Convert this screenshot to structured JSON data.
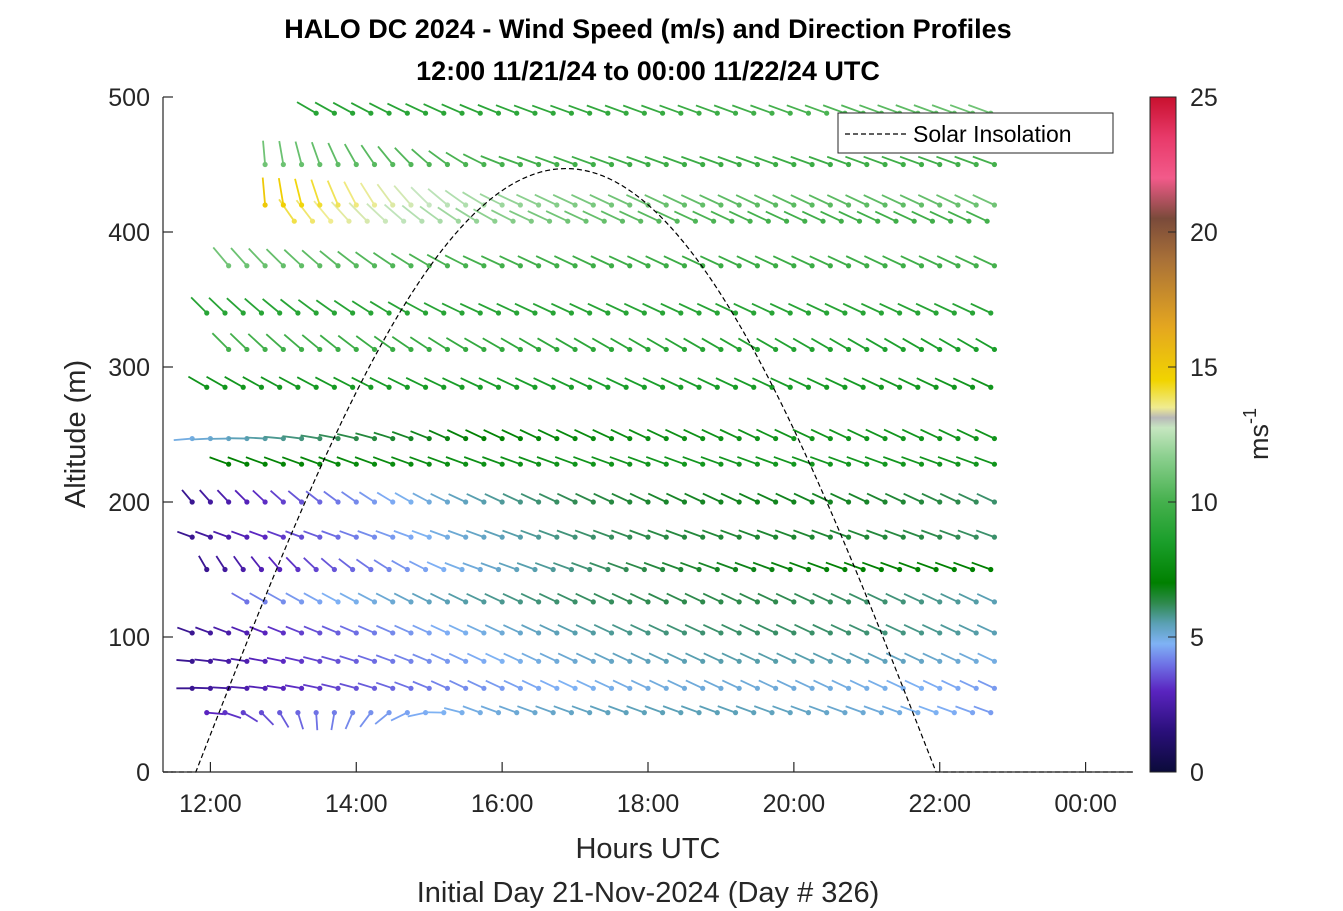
{
  "chart_data": {
    "type": "scatter",
    "title": [
      "HALO DC 2024 - Wind Speed (m/s) and Direction Profiles",
      "12:00 11/21/24 to 00:00 11/22/24  UTC"
    ],
    "xlabel": "Hours UTC",
    "sublabel": "Initial Day 21-Nov-2024 (Day # 326)",
    "ylabel": "Altitude (m)",
    "xlim": [
      11.35,
      24.65
    ],
    "ylim": [
      0,
      500
    ],
    "x_ticks": [
      12,
      14,
      16,
      18,
      20,
      22,
      24
    ],
    "x_tick_labels": [
      "12:00",
      "14:00",
      "16:00",
      "18:00",
      "20:00",
      "22:00",
      "00:00"
    ],
    "y_ticks": [
      0,
      100,
      200,
      300,
      400,
      500
    ],
    "y_tick_labels": [
      "0",
      "100",
      "200",
      "300",
      "400",
      "500"
    ],
    "colorbar": {
      "label": "ms",
      "label_exponent": "-1",
      "range": [
        0,
        25
      ],
      "ticks": [
        0,
        5,
        10,
        15,
        20,
        25
      ],
      "tick_labels": [
        "0",
        "5",
        "10",
        "15",
        "20",
        "25"
      ]
    },
    "legend": {
      "entries": [
        "Solar Insolation"
      ],
      "placement": "top-right",
      "line_style": "dashed"
    },
    "solar_insolation": {
      "sunrise_hour": 11.8,
      "sunset_hour": 21.95,
      "peak_hour": 16.875,
      "peak_altitude": 447
    },
    "wind_profiles": {
      "altitudes": [
        44,
        62,
        82,
        103,
        126,
        150,
        174,
        200,
        228,
        247,
        285,
        313,
        340,
        375,
        408,
        420,
        450,
        488
      ],
      "time_step_hours": 0.25,
      "profiles": [
        {
          "alt": 44,
          "t_start": 11.95,
          "t_end": 22.75,
          "speed_start": 3,
          "speed_mid": 7,
          "speed_end": 4.5,
          "dir_start": 95,
          "dir_end": 290
        },
        {
          "alt": 62,
          "t_start": 11.75,
          "t_end": 22.75,
          "speed_start": 2,
          "speed_mid": 6.5,
          "speed_end": 4.5,
          "dir_start": 270,
          "dir_end": 295
        },
        {
          "alt": 82,
          "t_start": 11.75,
          "t_end": 22.75,
          "speed_start": 2,
          "speed_mid": 7,
          "speed_end": 5,
          "dir_start": 275,
          "dir_end": 295
        },
        {
          "alt": 103,
          "t_start": 11.75,
          "t_end": 22.75,
          "speed_start": 2,
          "speed_mid": 7.5,
          "speed_end": 5.5,
          "dir_start": 290,
          "dir_end": 295
        },
        {
          "alt": 126,
          "t_start": 12.5,
          "t_end": 22.75,
          "speed_start": 4,
          "speed_mid": 7.5,
          "speed_end": 5.5,
          "dir_start": 300,
          "dir_end": 295
        },
        {
          "alt": 150,
          "t_start": 11.95,
          "t_end": 22.75,
          "speed_start": 2,
          "speed_mid": 7.5,
          "speed_end": 7,
          "dir_start": 330,
          "dir_end": 290
        },
        {
          "alt": 174,
          "t_start": 11.75,
          "t_end": 22.75,
          "speed_start": 2,
          "speed_mid": 8,
          "speed_end": 6,
          "dir_start": 290,
          "dir_end": 290
        },
        {
          "alt": 200,
          "t_start": 11.75,
          "t_end": 22.75,
          "speed_start": 2,
          "speed_mid": 8.5,
          "speed_end": 6,
          "dir_start": 320,
          "dir_end": 295
        },
        {
          "alt": 228,
          "t_start": 12.25,
          "t_end": 22.75,
          "speed_start": 7,
          "speed_mid": 8.5,
          "speed_end": 8,
          "dir_start": 290,
          "dir_end": 290
        },
        {
          "alt": 247,
          "t_start": 11.75,
          "t_end": 22.75,
          "speed_start": 5,
          "speed_mid": 8.5,
          "speed_end": 8,
          "dir_start": 265,
          "dir_end": 295
        },
        {
          "alt": 285,
          "t_start": 11.95,
          "t_end": 22.75,
          "speed_start": 8,
          "speed_mid": 9,
          "speed_end": 8,
          "dir_start": 300,
          "dir_end": 295
        },
        {
          "alt": 313,
          "t_start": 12.25,
          "t_end": 22.75,
          "speed_start": 10,
          "speed_mid": 9,
          "speed_end": 8.5,
          "dir_start": 315,
          "dir_end": 300
        },
        {
          "alt": 340,
          "t_start": 11.95,
          "t_end": 22.75,
          "speed_start": 9,
          "speed_mid": 9,
          "speed_end": 9,
          "dir_start": 315,
          "dir_end": 295
        },
        {
          "alt": 375,
          "t_start": 12.25,
          "t_end": 22.75,
          "speed_start": 11,
          "speed_mid": 9,
          "speed_end": 10,
          "dir_start": 320,
          "dir_end": 295
        },
        {
          "alt": 408,
          "t_start": 13.15,
          "t_end": 22.75,
          "speed_start": 14,
          "speed_mid": 9,
          "speed_end": 10,
          "dir_start": 325,
          "dir_end": 295
        },
        {
          "alt": 420,
          "t_start": 12.75,
          "t_end": 22.75,
          "speed_start": 15,
          "speed_mid": 9,
          "speed_end": 11,
          "dir_start": 355,
          "dir_end": 295
        },
        {
          "alt": 450,
          "t_start": 12.75,
          "t_end": 22.75,
          "speed_start": 11,
          "speed_mid": 9,
          "speed_end": 10,
          "dir_start": 355,
          "dir_end": 290
        },
        {
          "alt": 488,
          "t_start": 13.45,
          "t_end": 22.75,
          "speed_start": 9,
          "speed_mid": 9,
          "speed_end": 11,
          "dir_start": 300,
          "dir_end": 290
        }
      ]
    }
  }
}
